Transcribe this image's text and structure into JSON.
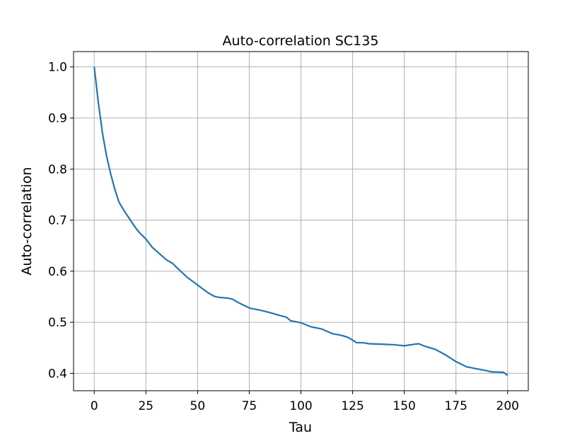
{
  "chart_data": {
    "type": "line",
    "title": "Auto-correlation SC135",
    "xlabel": "Tau",
    "ylabel": "Auto-correlation",
    "x": [
      0,
      2,
      4,
      6,
      8,
      10,
      12,
      15,
      18,
      20,
      22,
      25,
      28,
      30,
      35,
      38,
      40,
      45,
      50,
      55,
      58,
      60,
      65,
      67,
      70,
      75,
      80,
      85,
      90,
      93,
      95,
      100,
      105,
      110,
      115,
      120,
      123,
      127,
      130,
      133,
      140,
      145,
      150,
      155,
      157,
      160,
      165,
      170,
      175,
      180,
      185,
      190,
      192,
      198,
      200
    ],
    "series": [
      {
        "name": "SC135",
        "color": "#1f77b4",
        "values": [
          1.0,
          0.93,
          0.87,
          0.825,
          0.79,
          0.76,
          0.735,
          0.715,
          0.697,
          0.685,
          0.675,
          0.663,
          0.647,
          0.64,
          0.622,
          0.615,
          0.607,
          0.588,
          0.573,
          0.558,
          0.551,
          0.549,
          0.547,
          0.545,
          0.538,
          0.528,
          0.524,
          0.519,
          0.513,
          0.51,
          0.503,
          0.499,
          0.491,
          0.487,
          0.478,
          0.474,
          0.47,
          0.46,
          0.46,
          0.458,
          0.457,
          0.456,
          0.454,
          0.457,
          0.458,
          0.453,
          0.447,
          0.436,
          0.423,
          0.413,
          0.409,
          0.405,
          0.403,
          0.402,
          0.396
        ]
      }
    ],
    "xlim": [
      -10,
      210
    ],
    "xticks": [
      0,
      25,
      50,
      75,
      100,
      125,
      150,
      175,
      200
    ],
    "ylim": [
      0.366,
      1.03
    ],
    "yticks": [
      0.4,
      0.5,
      0.6,
      0.7,
      0.8,
      0.9,
      {
        "value": 1,
        "label": "1.0"
      }
    ],
    "grid": true
  }
}
